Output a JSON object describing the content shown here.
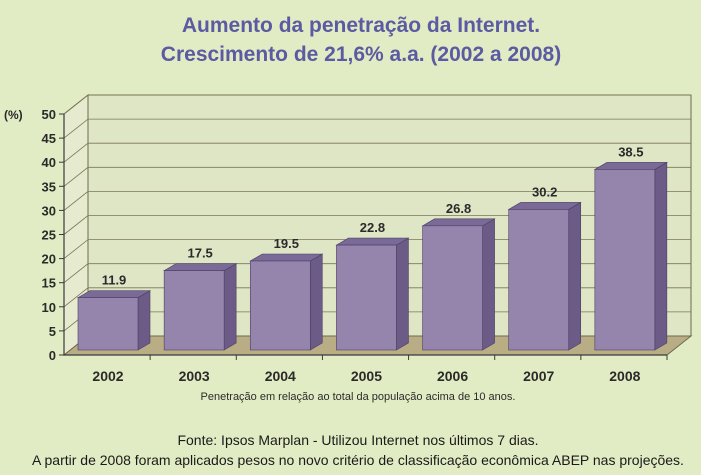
{
  "chart_data": {
    "type": "bar",
    "title": "Aumento da penetração da Internet.",
    "subtitle": "Crescimento de 21,6% a.a. (2002 a 2008)",
    "ylabel": "(%)",
    "xlabel": "",
    "ylim": [
      0,
      50
    ],
    "yticks": [
      "0",
      "5",
      "10",
      "15",
      "20",
      "25",
      "30",
      "35",
      "40",
      "45",
      "50"
    ],
    "categories": [
      "2002",
      "2003",
      "2004",
      "2005",
      "2006",
      "2007",
      "2008"
    ],
    "values": [
      11.9,
      17.5,
      19.5,
      22.8,
      26.8,
      30.2,
      38.5
    ],
    "value_labels": [
      "11.9",
      "17.5",
      "19.5",
      "22.8",
      "26.8",
      "30.2",
      "38.5"
    ],
    "grid": true,
    "legend": "none",
    "bar_color": "#9585ad",
    "note": "Penetração em relação ao total da população acima de 10 anos."
  },
  "footer": {
    "source": "Fonte: Ipsos Marplan - Utilizou Internet nos últimos 7 dias.",
    "method": "A partir de 2008 foram aplicados pesos no novo critério de classificação econômica ABEP nas projeções."
  }
}
